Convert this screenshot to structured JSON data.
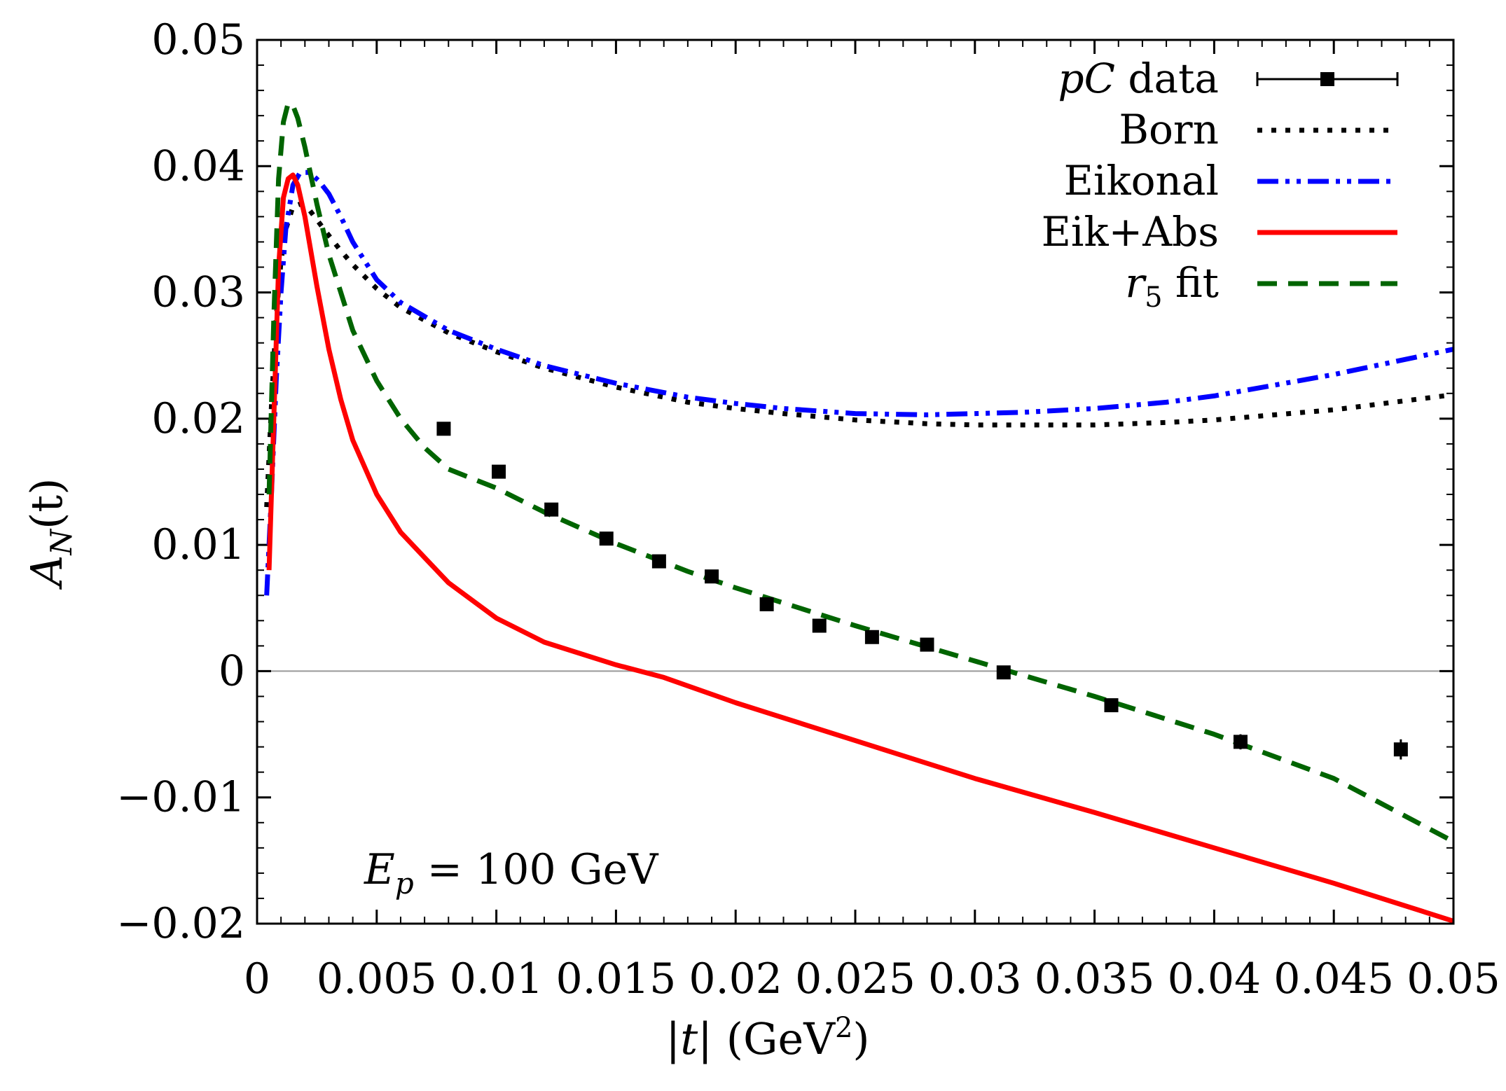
{
  "chart_data": {
    "type": "line",
    "title": "",
    "xlabel": "|t| (GeV²)",
    "xlabel_parts": {
      "var": "|t|",
      "unit_open": " (GeV",
      "unit_exp": "2",
      "unit_close": ")"
    },
    "ylabel": "A_N(t)",
    "ylabel_parts": {
      "base": "A",
      "sub": "N",
      "rest": "(t)"
    },
    "xlim": [
      0,
      0.05
    ],
    "ylim": [
      -0.02,
      0.05
    ],
    "x_ticks": [
      0,
      0.005,
      0.01,
      0.015,
      0.02,
      0.025,
      0.03,
      0.035,
      0.04,
      0.045,
      0.05
    ],
    "x_tick_labels": [
      "0",
      "0.005",
      "0.01",
      "0.015",
      "0.02",
      "0.025",
      "0.03",
      "0.035",
      "0.04",
      "0.045",
      "0.05"
    ],
    "y_ticks": [
      -0.02,
      -0.01,
      0,
      0.01,
      0.02,
      0.03,
      0.04,
      0.05
    ],
    "y_tick_labels": [
      "−0.02",
      "−0.01",
      "0",
      "0.01",
      "0.02",
      "0.03",
      "0.04",
      "0.05"
    ],
    "zero_line": true,
    "legend_position": "top-right",
    "annotation": {
      "var": "E",
      "sub": "p",
      "rest": " = 100 GeV"
    },
    "series": [
      {
        "name": "pC data",
        "name_parts": {
          "italic": "pC",
          "plain": " data"
        },
        "kind": "points",
        "color": "#000000",
        "x": [
          0.0078,
          0.0101,
          0.0123,
          0.0146,
          0.0168,
          0.019,
          0.0213,
          0.0235,
          0.0257,
          0.028,
          0.0312,
          0.0357,
          0.0411,
          0.0478
        ],
        "y": [
          0.0192,
          0.0158,
          0.0128,
          0.0105,
          0.0087,
          0.0075,
          0.0053,
          0.0036,
          0.0027,
          0.0021,
          -0.0001,
          -0.0027,
          -0.0056,
          -0.0062
        ],
        "yerr": [
          0.0004,
          0.0004,
          0.0004,
          0.0004,
          0.0004,
          0.0004,
          0.0004,
          0.0004,
          0.0004,
          0.0004,
          0.0004,
          0.0005,
          0.0006,
          0.0008
        ]
      },
      {
        "name": "Born",
        "kind": "line",
        "style": "dotted",
        "color": "#000000",
        "x": [
          0.0004,
          0.0006,
          0.0008,
          0.001,
          0.0012,
          0.0015,
          0.0018,
          0.0022,
          0.0026,
          0.003,
          0.0035,
          0.004,
          0.005,
          0.006,
          0.008,
          0.01,
          0.012,
          0.015,
          0.018,
          0.02,
          0.022,
          0.025,
          0.028,
          0.03,
          0.032,
          0.035,
          0.038,
          0.04,
          0.045,
          0.05
        ],
        "y": [
          0.013,
          0.021,
          0.028,
          0.0325,
          0.035,
          0.0368,
          0.037,
          0.0365,
          0.0355,
          0.0345,
          0.0333,
          0.0322,
          0.0303,
          0.0288,
          0.0268,
          0.0253,
          0.024,
          0.0225,
          0.0213,
          0.0208,
          0.0204,
          0.0199,
          0.0196,
          0.0195,
          0.0195,
          0.0195,
          0.0197,
          0.0199,
          0.0207,
          0.0219
        ]
      },
      {
        "name": "Eikonal",
        "kind": "line",
        "style": "dash-dot-dot",
        "color": "#0000ff",
        "x": [
          0.0004,
          0.0006,
          0.0008,
          0.001,
          0.0012,
          0.0015,
          0.0018,
          0.0022,
          0.0026,
          0.003,
          0.0035,
          0.004,
          0.005,
          0.006,
          0.008,
          0.01,
          0.012,
          0.015,
          0.018,
          0.02,
          0.022,
          0.025,
          0.028,
          0.03,
          0.032,
          0.035,
          0.038,
          0.04,
          0.045,
          0.05
        ],
        "y": [
          0.006,
          0.014,
          0.023,
          0.03,
          0.035,
          0.0385,
          0.0395,
          0.0395,
          0.0388,
          0.0378,
          0.036,
          0.034,
          0.031,
          0.0292,
          0.027,
          0.0255,
          0.0242,
          0.0228,
          0.0217,
          0.0212,
          0.0208,
          0.0204,
          0.0203,
          0.0204,
          0.0205,
          0.0208,
          0.0213,
          0.0218,
          0.0235,
          0.0255
        ]
      },
      {
        "name": "Eik+Abs",
        "kind": "line",
        "style": "solid",
        "color": "#ff0000",
        "x": [
          0.0005,
          0.0007,
          0.0009,
          0.0011,
          0.0013,
          0.0015,
          0.0017,
          0.002,
          0.0025,
          0.003,
          0.0035,
          0.004,
          0.005,
          0.006,
          0.007,
          0.008,
          0.01,
          0.012,
          0.015,
          0.017,
          0.02,
          0.025,
          0.03,
          0.035,
          0.04,
          0.045,
          0.05
        ],
        "y": [
          0.008,
          0.02,
          0.032,
          0.0375,
          0.039,
          0.0393,
          0.0385,
          0.036,
          0.0305,
          0.0255,
          0.0215,
          0.0183,
          0.014,
          0.011,
          0.009,
          0.007,
          0.0042,
          0.0023,
          0.0005,
          -0.0005,
          -0.0025,
          -0.0055,
          -0.0085,
          -0.0112,
          -0.014,
          -0.0168,
          -0.0198
        ]
      },
      {
        "name": "r5 fit",
        "name_parts": {
          "italic": "r",
          "sub": "5",
          "plain": " fit"
        },
        "kind": "line",
        "style": "dashed",
        "color": "#006400",
        "x": [
          0.0005,
          0.0007,
          0.0009,
          0.0011,
          0.0013,
          0.0015,
          0.0017,
          0.002,
          0.0025,
          0.003,
          0.004,
          0.005,
          0.006,
          0.007,
          0.008,
          0.01,
          0.012,
          0.015,
          0.018,
          0.02,
          0.025,
          0.03,
          0.035,
          0.04,
          0.045,
          0.05
        ],
        "y": [
          0.014,
          0.028,
          0.039,
          0.0435,
          0.045,
          0.0448,
          0.0438,
          0.0415,
          0.037,
          0.033,
          0.027,
          0.023,
          0.02,
          0.0177,
          0.016,
          0.0145,
          0.0126,
          0.0101,
          0.0079,
          0.0066,
          0.0036,
          0.0008,
          -0.002,
          -0.005,
          -0.0085,
          -0.0135
        ]
      }
    ]
  }
}
